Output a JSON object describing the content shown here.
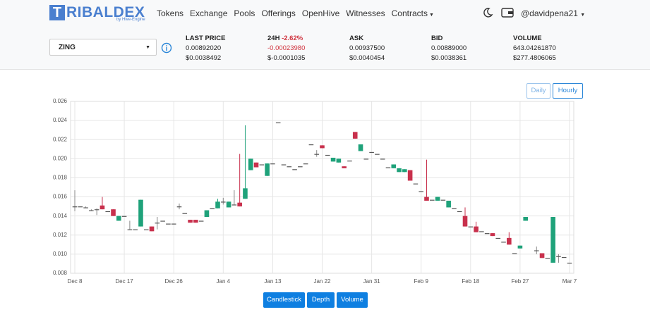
{
  "header": {
    "logo_icon": "T",
    "logo_text": "RIBALDEX",
    "logo_sub": "by Hive-Engine",
    "nav": [
      "Tokens",
      "Exchange",
      "Pools",
      "Offerings",
      "OpenHive",
      "Witnesses",
      "Contracts"
    ],
    "user": "@davidpena21"
  },
  "ticker": {
    "symbol": "ZING",
    "stats": [
      {
        "label": "LAST PRICE",
        "values": [
          "0.00892020",
          "$0.0038492"
        ]
      },
      {
        "label": "24H",
        "change": "-2.62%",
        "values": [
          "-0.00023980",
          "$-0.0001035"
        ]
      },
      {
        "label": "ASK",
        "values": [
          "0.00937500",
          "$0.0040454"
        ]
      },
      {
        "label": "BID",
        "values": [
          "0.00889000",
          "$0.0038361"
        ]
      },
      {
        "label": "VOLUME",
        "values": [
          "643.04261870",
          "$277.4806065"
        ]
      }
    ]
  },
  "interval_buttons": [
    "Daily",
    "Hourly"
  ],
  "chart_tabs": [
    "Candlestick",
    "Depth",
    "Volume"
  ],
  "chart_data": {
    "type": "candlestick",
    "grid": true,
    "up_color": "#1fa27a",
    "down_color": "#c8304c",
    "flat_color": "#555555",
    "categories": [
      "Dec 8",
      null,
      null,
      null,
      null,
      null,
      null,
      null,
      null,
      "Dec 17",
      null,
      null,
      null,
      null,
      null,
      null,
      null,
      null,
      "Dec 26",
      null,
      null,
      null,
      null,
      null,
      null,
      null,
      null,
      "Jan 4",
      null,
      null,
      null,
      null,
      null,
      null,
      null,
      null,
      "Jan 13",
      null,
      null,
      null,
      null,
      null,
      null,
      null,
      null,
      "Jan 22",
      null,
      null,
      null,
      null,
      null,
      null,
      null,
      null,
      "Jan 31",
      null,
      null,
      null,
      null,
      null,
      null,
      null,
      null,
      "Feb 9",
      null,
      null,
      null,
      null,
      null,
      null,
      null,
      null,
      "Feb 18",
      null,
      null,
      null,
      null,
      null,
      null,
      null,
      null,
      "Feb 27",
      null,
      null,
      null,
      null,
      null,
      null,
      null,
      null,
      "Mar 7"
    ],
    "open": [
      0.015,
      0.015,
      0.0149,
      0.0146,
      0.0147,
      0.0151,
      0.0145,
      0.0147,
      0.0135,
      0.014,
      0.0126,
      0.0126,
      0.0129,
      0.0126,
      0.0129,
      0.0133,
      0.0135,
      0.0132,
      0.0132,
      0.015,
      0.0143,
      0.0136,
      0.0136,
      0.0135,
      0.0139,
      0.0148,
      0.0148,
      0.0155,
      0.0149,
      0.0152,
      0.0154,
      0.0158,
      0.0188,
      0.0196,
      0.0194,
      0.0182,
      0.0195,
      0.0238,
      0.0194,
      0.0192,
      0.0189,
      0.0192,
      0.0195,
      0.0215,
      0.0205,
      0.0214,
      0.0204,
      0.0197,
      0.0196,
      0.0192,
      0.0198,
      0.0228,
      0.0208,
      0.02,
      0.0207,
      0.0205,
      0.02,
      0.0191,
      0.019,
      0.0186,
      0.0186,
      0.0188,
      0.0174,
      0.0166,
      0.016,
      0.0157,
      0.0156,
      0.0157,
      0.0149,
      0.0148,
      0.0145,
      0.014,
      0.0129,
      0.0129,
      0.0124,
      0.0122,
      0.0122,
      0.0117,
      0.0113,
      0.0117,
      0.0101,
      0.0106,
      0.0135,
      null,
      0.0104,
      0.0101,
      0.0096,
      0.0091,
      0.0098,
      0.0097,
      0.0091
    ],
    "high": [
      0.0167,
      0.015,
      0.015,
      0.0147,
      0.0148,
      0.016,
      0.0145,
      0.0147,
      0.014,
      0.014,
      0.0135,
      0.0126,
      0.0157,
      0.0126,
      0.0129,
      0.0139,
      0.0135,
      0.0132,
      0.0132,
      0.0153,
      0.0143,
      0.0136,
      0.0136,
      0.0135,
      0.0146,
      0.0148,
      0.0158,
      0.0159,
      0.0155,
      0.0167,
      0.0205,
      0.0235,
      0.02,
      0.0196,
      0.0194,
      0.0195,
      0.0195,
      0.0238,
      0.0194,
      0.0192,
      0.0189,
      0.0192,
      0.0195,
      0.0215,
      0.0209,
      0.0214,
      0.0204,
      0.0201,
      0.02,
      0.0192,
      0.0198,
      0.0228,
      0.0215,
      0.02,
      0.0207,
      0.0205,
      0.02,
      0.0191,
      0.0194,
      0.019,
      0.0189,
      0.0188,
      0.0174,
      0.0166,
      0.0199,
      0.0157,
      0.016,
      0.0157,
      0.0156,
      0.0148,
      0.0145,
      0.0149,
      0.0129,
      0.0134,
      0.0124,
      0.0122,
      0.0122,
      0.0117,
      0.0113,
      0.0123,
      0.0101,
      0.0109,
      0.0139,
      null,
      0.0108,
      0.0101,
      0.0096,
      0.0139,
      0.01,
      0.0097,
      0.0091
    ],
    "low": [
      0.0145,
      0.015,
      0.0149,
      0.0146,
      0.0141,
      0.0147,
      0.0145,
      0.014,
      0.0135,
      0.014,
      0.0126,
      0.0126,
      0.0129,
      0.0126,
      0.0124,
      0.0126,
      0.0135,
      0.0132,
      0.0132,
      0.0147,
      0.0143,
      0.0133,
      0.0133,
      0.0135,
      0.0139,
      0.0148,
      0.0148,
      0.0152,
      0.0149,
      0.0152,
      0.015,
      0.0158,
      0.0188,
      0.0191,
      0.0194,
      0.0182,
      0.0195,
      0.0238,
      0.0194,
      0.0192,
      0.0189,
      0.0192,
      0.0195,
      0.0215,
      0.0202,
      0.0211,
      0.0204,
      0.0197,
      0.0196,
      0.019,
      0.0198,
      0.0221,
      0.0208,
      0.02,
      0.0207,
      0.0205,
      0.02,
      0.0191,
      0.019,
      0.0186,
      0.0186,
      0.0177,
      0.0174,
      0.0166,
      0.0156,
      0.0157,
      0.0156,
      0.0157,
      0.0149,
      0.0148,
      0.0145,
      0.0129,
      0.0129,
      0.0123,
      0.0124,
      0.0122,
      0.0119,
      0.0117,
      0.0113,
      0.011,
      0.0101,
      0.0106,
      0.0135,
      null,
      0.01,
      0.0096,
      0.0096,
      0.0091,
      0.0091,
      0.0097,
      0.0091
    ],
    "close": [
      0.015,
      0.015,
      0.0149,
      0.0146,
      0.0147,
      0.0147,
      0.0145,
      0.014,
      0.014,
      0.014,
      0.0126,
      0.0126,
      0.0157,
      0.0126,
      0.0124,
      0.0133,
      0.0135,
      0.0132,
      0.0132,
      0.015,
      0.0143,
      0.0133,
      0.0133,
      0.0135,
      0.0146,
      0.0148,
      0.0155,
      0.0155,
      0.0155,
      0.0152,
      0.015,
      0.0169,
      0.02,
      0.0191,
      0.0194,
      0.0195,
      0.0195,
      0.0238,
      0.0194,
      0.0192,
      0.0189,
      0.0192,
      0.0195,
      0.0215,
      0.0205,
      0.0211,
      0.0204,
      0.0201,
      0.02,
      0.019,
      0.0198,
      0.0221,
      0.0215,
      0.02,
      0.0207,
      0.0205,
      0.02,
      0.0191,
      0.0194,
      0.019,
      0.0189,
      0.0177,
      0.0174,
      0.0166,
      0.0156,
      0.0157,
      0.016,
      0.0157,
      0.0156,
      0.0148,
      0.0145,
      0.0129,
      0.0129,
      0.0123,
      0.0124,
      0.0122,
      0.0119,
      0.0117,
      0.0113,
      0.011,
      0.0101,
      0.0109,
      0.0139,
      null,
      0.0104,
      0.0096,
      0.0096,
      0.0139,
      0.0098,
      0.0097,
      0.0091
    ],
    "ylim": [
      0.008,
      0.026
    ],
    "yticks": [
      0.008,
      {
        "value": 0.01,
        "label": "0.010"
      },
      0.012,
      0.014,
      0.016,
      0.018,
      {
        "value": 0.02,
        "label": "0.020"
      },
      0.022,
      0.024,
      0.026
    ]
  }
}
